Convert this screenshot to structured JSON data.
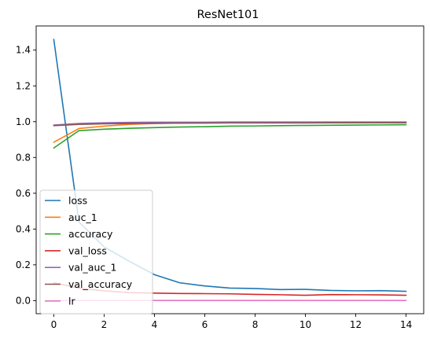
{
  "chart_data": {
    "type": "line",
    "title": "ResNet101",
    "xlabel": "",
    "ylabel": "",
    "x": [
      0,
      1,
      2,
      3,
      4,
      5,
      6,
      7,
      8,
      9,
      10,
      11,
      12,
      13,
      14
    ],
    "xlim": [
      -0.7,
      14.7
    ],
    "ylim": [
      -0.073,
      1.535
    ],
    "xticks": [
      0,
      2,
      4,
      6,
      8,
      10,
      12,
      14
    ],
    "yticks": [
      0.0,
      0.2,
      0.4,
      0.6,
      0.8,
      1.0,
      1.2,
      1.4
    ],
    "ytick_labels": [
      "0.0",
      "0.2",
      "0.4",
      "0.6",
      "0.8",
      "1.0",
      "1.2",
      "1.4"
    ],
    "grid": false,
    "legend_position": "lower-left",
    "series": [
      {
        "name": "loss",
        "color": "#1f77b4",
        "values": [
          1.46,
          0.44,
          0.3,
          0.22,
          0.145,
          0.1,
          0.082,
          0.07,
          0.068,
          0.062,
          0.063,
          0.057,
          0.055,
          0.056,
          0.052
        ]
      },
      {
        "name": "auc_1",
        "color": "#ff7f0e",
        "values": [
          0.885,
          0.962,
          0.975,
          0.985,
          0.99,
          0.992,
          0.994,
          0.995,
          0.995,
          0.996,
          0.996,
          0.997,
          0.997,
          0.997,
          0.997
        ]
      },
      {
        "name": "accuracy",
        "color": "#2ca02c",
        "values": [
          0.853,
          0.95,
          0.958,
          0.963,
          0.967,
          0.97,
          0.972,
          0.975,
          0.976,
          0.978,
          0.979,
          0.98,
          0.981,
          0.982,
          0.983
        ]
      },
      {
        "name": "val_loss",
        "color": "#d62728",
        "values": [
          0.1,
          0.07,
          0.055,
          0.045,
          0.042,
          0.04,
          0.039,
          0.038,
          0.035,
          0.033,
          0.03,
          0.034,
          0.033,
          0.032,
          0.03
        ]
      },
      {
        "name": "val_auc_1",
        "color": "#9467bd",
        "values": [
          0.981,
          0.99,
          0.994,
          0.996,
          0.997,
          0.997,
          0.997,
          0.998,
          0.998,
          0.998,
          0.998,
          0.998,
          0.998,
          0.998,
          0.998
        ]
      },
      {
        "name": "val_accuracy",
        "color": "#8c564b",
        "values": [
          0.978,
          0.985,
          0.988,
          0.99,
          0.991,
          0.992,
          0.992,
          0.993,
          0.993,
          0.993,
          0.993,
          0.994,
          0.994,
          0.994,
          0.994
        ]
      },
      {
        "name": "lr",
        "color": "#e377c2",
        "values": [
          0.001,
          0.001,
          0.001,
          0.001,
          0.001,
          0.001,
          0.001,
          0.001,
          0.001,
          0.001,
          0.001,
          0.001,
          0.001,
          0.001,
          0.001
        ]
      }
    ]
  }
}
